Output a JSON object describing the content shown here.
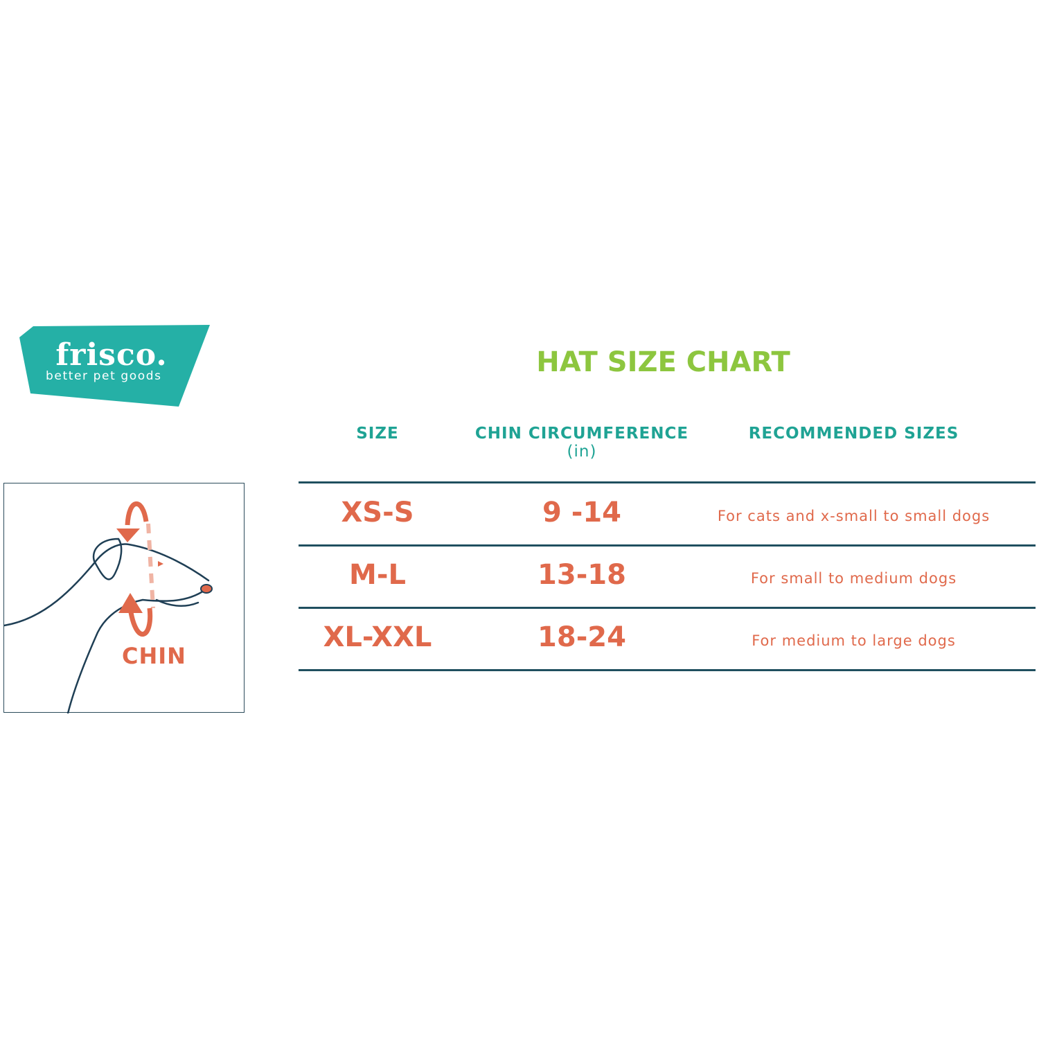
{
  "logo": {
    "brand": "frisco.",
    "tagline": "better pet goods",
    "color": "#25b0a6"
  },
  "illustration": {
    "label": "CHIN"
  },
  "title": "HAT SIZE CHART",
  "headers": {
    "size": "SIZE",
    "chin": "CHIN CIRCUMFERENCE",
    "chin_unit": "(in)",
    "recommended": "RECOMMENDED SIZES"
  },
  "rows": [
    {
      "size": "XS-S",
      "chin": "9 -14",
      "recommended": "For cats and x-small to small dogs"
    },
    {
      "size": "M-L",
      "chin": "13-18",
      "recommended": "For small to medium dogs"
    },
    {
      "size": "XL-XXL",
      "chin": "18-24",
      "recommended": "For medium to large dogs"
    }
  ],
  "colors": {
    "title": "#8dc63f",
    "header": "#1fa394",
    "values": "#e0694b",
    "lines": "#1f4f5f"
  }
}
